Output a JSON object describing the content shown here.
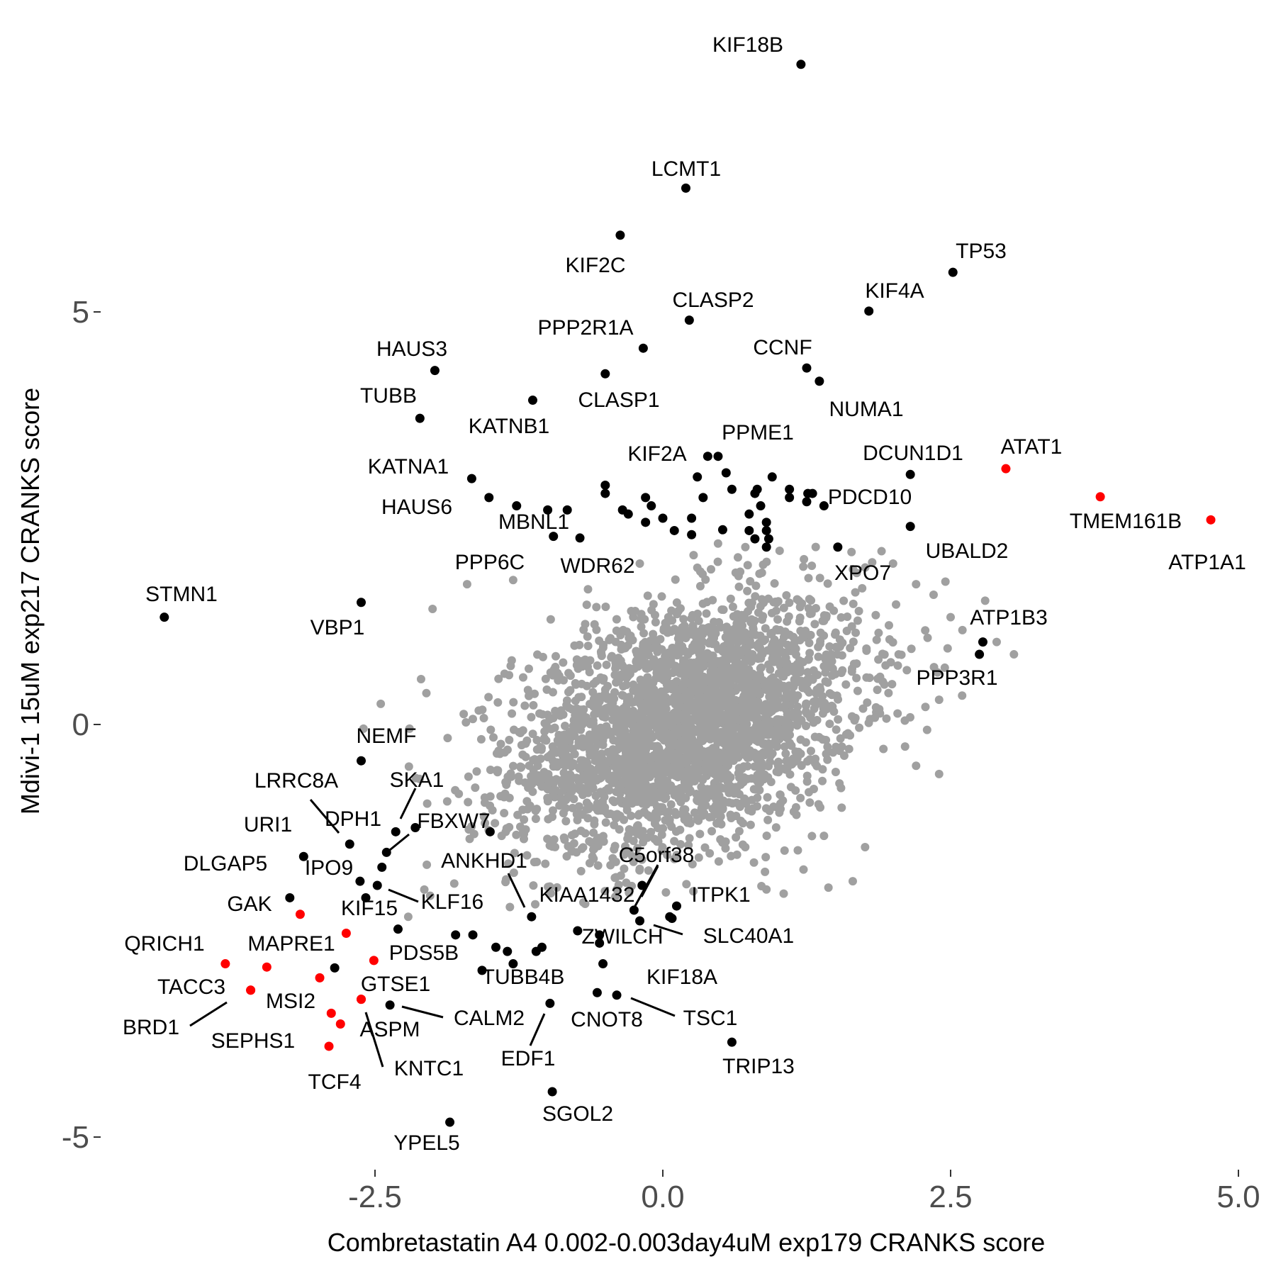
{
  "chart_data": {
    "type": "scatter",
    "title": "",
    "xlabel": "Combretastatin A4 0.002-0.003day4uM exp179 CRANKS score",
    "ylabel": "Mdivi-1 15uM exp217 CRANKS score",
    "xlim": [
      -4.55,
      5.0
    ],
    "ylim": [
      -5.4,
      8.0
    ],
    "x_ticks": [
      -2.5,
      0.0,
      2.5,
      5.0
    ],
    "x_tick_labels": [
      "-2.5",
      "0.0",
      "2.5",
      "5.0"
    ],
    "y_ticks": [
      -5,
      0,
      5
    ],
    "y_tick_labels": [
      "-5",
      "0",
      "5"
    ],
    "grid": false,
    "legend": "none",
    "colors": {
      "background": "#888888",
      "highlight": "#000000",
      "red": "#ff0000"
    },
    "background_cloud": {
      "color": "#a0a0a0",
      "center": [
        0.2,
        0.0
      ],
      "sd": [
        0.75,
        0.75
      ],
      "n": 3000,
      "extra_points": [
        [
          -2.0,
          1.4
        ],
        [
          -1.7,
          1.7
        ],
        [
          -1.3,
          1.75
        ],
        [
          -2.1,
          0.55
        ],
        [
          -2.45,
          0.25
        ],
        [
          -2.2,
          -0.05
        ],
        [
          -2.6,
          -0.05
        ],
        [
          -2.05,
          -1.7
        ],
        [
          -1.4,
          -1.35
        ],
        [
          2.5,
          1.3
        ],
        [
          2.2,
          1.7
        ],
        [
          2.8,
          1.5
        ],
        [
          2.9,
          1.0
        ],
        [
          3.05,
          0.85
        ],
        [
          2.4,
          0.3
        ],
        [
          2.6,
          0.35
        ],
        [
          2.2,
          -0.5
        ],
        [
          2.4,
          -0.6
        ],
        [
          1.65,
          -1.9
        ],
        [
          2.3,
          1.05
        ],
        [
          1.9,
          2.1
        ],
        [
          2.0,
          1.95
        ],
        [
          0.3,
          1.9
        ],
        [
          -0.2,
          1.95
        ],
        [
          -0.4,
          -2.0
        ],
        [
          0.9,
          -2.0
        ],
        [
          1.05,
          -2.05
        ],
        [
          -0.75,
          -1.55
        ],
        [
          -0.2,
          -1.75
        ],
        [
          1.4,
          -1.35
        ]
      ]
    },
    "labeled_points": [
      {
        "label": "KIF18B",
        "x": 1.2,
        "y": 8.0,
        "color": "black"
      },
      {
        "label": "LCMT1",
        "x": 0.2,
        "y": 6.5,
        "color": "black"
      },
      {
        "label": "KIF2C",
        "x": -0.37,
        "y": 5.93,
        "color": "black"
      },
      {
        "label": "TP53",
        "x": 2.52,
        "y": 5.48,
        "color": "black"
      },
      {
        "label": "KIF4A",
        "x": 1.79,
        "y": 5.01,
        "color": "black"
      },
      {
        "label": "CLASP2",
        "x": 0.23,
        "y": 4.9,
        "color": "black"
      },
      {
        "label": "PPP2R1A",
        "x": -0.17,
        "y": 4.56,
        "color": "black"
      },
      {
        "label": "HAUS3",
        "x": -1.98,
        "y": 4.29,
        "color": "black"
      },
      {
        "label": "CCNF",
        "x": 1.25,
        "y": 4.32,
        "color": "black"
      },
      {
        "label": "NUMA1",
        "x": 1.36,
        "y": 4.16,
        "color": "black"
      },
      {
        "label": "CLASP1",
        "x": -0.5,
        "y": 4.25,
        "color": "black"
      },
      {
        "label": "KATNB1",
        "x": -1.13,
        "y": 3.93,
        "color": "black"
      },
      {
        "label": "TUBB",
        "x": -2.11,
        "y": 3.71,
        "color": "black"
      },
      {
        "label": "PPME1",
        "x": 0.48,
        "y": 3.25,
        "color": "black"
      },
      {
        "label": "KIF2A",
        "x": 0.39,
        "y": 3.25,
        "color": "black"
      },
      {
        "label": "DCUN1D1",
        "x": 2.15,
        "y": 3.03,
        "color": "black"
      },
      {
        "label": "ATAT1",
        "x": 2.98,
        "y": 3.1,
        "color": "red"
      },
      {
        "label": "KATNA1",
        "x": -1.66,
        "y": 2.98,
        "color": "black"
      },
      {
        "label": "TMEM161B",
        "x": 3.8,
        "y": 2.76,
        "color": "red"
      },
      {
        "label": "HAUS6",
        "x": -1.51,
        "y": 2.75,
        "color": "black"
      },
      {
        "label": "PDCD10",
        "x": 1.26,
        "y": 2.8,
        "color": "black"
      },
      {
        "label": "ATP1A1",
        "x": 4.76,
        "y": 2.48,
        "color": "red"
      },
      {
        "label": "MBNL1",
        "x": -1.27,
        "y": 2.65,
        "color": "black"
      },
      {
        "label": "UBALD2",
        "x": 2.15,
        "y": 2.4,
        "color": "black"
      },
      {
        "label": "WDR62",
        "x": -0.72,
        "y": 2.26,
        "color": "black"
      },
      {
        "label": "PPP6C",
        "x": -0.95,
        "y": 2.28,
        "color": "black"
      },
      {
        "label": "XPO7",
        "x": 1.52,
        "y": 2.15,
        "color": "black"
      },
      {
        "label": "STMN1",
        "x": -4.33,
        "y": 1.3,
        "color": "black"
      },
      {
        "label": "VBP1",
        "x": -2.62,
        "y": 1.48,
        "color": "black"
      },
      {
        "label": "ATP1B3",
        "x": 2.78,
        "y": 1.0,
        "color": "black"
      },
      {
        "label": "PPP3R1",
        "x": 2.75,
        "y": 0.85,
        "color": "black"
      },
      {
        "label": "NEMF",
        "x": -2.62,
        "y": -0.44,
        "color": "black"
      },
      {
        "label": "LRRC8A",
        "x": -2.72,
        "y": -1.45,
        "color": "black"
      },
      {
        "label": "SKA1",
        "x": -2.32,
        "y": -1.3,
        "color": "black"
      },
      {
        "label": "FBXW7",
        "x": -2.4,
        "y": -1.55,
        "color": "black"
      },
      {
        "label": "DPH1",
        "x": -2.44,
        "y": -1.73,
        "color": "black"
      },
      {
        "label": "URI1",
        "x": -3.12,
        "y": -1.6,
        "color": "black"
      },
      {
        "label": "IPO9",
        "x": -2.63,
        "y": -1.9,
        "color": "black"
      },
      {
        "label": "KLF16",
        "x": -2.48,
        "y": -1.95,
        "color": "black"
      },
      {
        "label": "DLGAP5",
        "x": -3.24,
        "y": -2.1,
        "color": "black"
      },
      {
        "label": "GAK",
        "x": -3.15,
        "y": -2.3,
        "color": "red"
      },
      {
        "label": "KIF15",
        "x": -2.75,
        "y": -2.53,
        "color": "red"
      },
      {
        "label": "ANKHD1",
        "x": -1.14,
        "y": -2.33,
        "color": "black"
      },
      {
        "label": "KIAA1432",
        "x": -0.25,
        "y": -2.25,
        "color": "black"
      },
      {
        "label": "C5orf38",
        "x": -0.2,
        "y": -2.38,
        "color": "black"
      },
      {
        "label": "ITPK1",
        "x": 0.06,
        "y": -2.33,
        "color": "black"
      },
      {
        "label": "SLC40A1",
        "x": 0.08,
        "y": -2.35,
        "color": "black"
      },
      {
        "label": "ZWILCH",
        "x": -0.74,
        "y": -2.5,
        "color": "black"
      },
      {
        "label": "QRICH1",
        "x": -3.8,
        "y": -2.9,
        "color": "red"
      },
      {
        "label": "MAPRE1",
        "x": -3.44,
        "y": -2.94,
        "color": "red"
      },
      {
        "label": "PDS5B",
        "x": -2.51,
        "y": -2.86,
        "color": "red"
      },
      {
        "label": "TUBB4B",
        "x": -1.57,
        "y": -2.98,
        "color": "black"
      },
      {
        "label": "KIF18A",
        "x": -0.52,
        "y": -2.9,
        "color": "black"
      },
      {
        "label": "TACC3",
        "x": -3.58,
        "y": -3.22,
        "color": "red"
      },
      {
        "label": "MSI2",
        "x": -2.98,
        "y": -3.07,
        "color": "red"
      },
      {
        "label": "GTSE1",
        "x": -2.62,
        "y": -3.33,
        "color": "red"
      },
      {
        "label": "CALM2",
        "x": -2.37,
        "y": -3.4,
        "color": "black"
      },
      {
        "label": "EDF1",
        "x": -0.98,
        "y": -3.38,
        "color": "black"
      },
      {
        "label": "CNOT8",
        "x": -0.57,
        "y": -3.25,
        "color": "black"
      },
      {
        "label": "TSC1",
        "x": -0.4,
        "y": -3.28,
        "color": "black"
      },
      {
        "label": "BRD1",
        "x": -3.58,
        "y": -3.22,
        "color": "red"
      },
      {
        "label": "ASPM",
        "x": -2.8,
        "y": -3.63,
        "color": "red"
      },
      {
        "label": "SEPHS1",
        "x": -2.88,
        "y": -3.5,
        "color": "red"
      },
      {
        "label": "KNTC1",
        "x": -2.62,
        "y": -3.33,
        "color": "red"
      },
      {
        "label": "TCF4",
        "x": -2.9,
        "y": -3.9,
        "color": "red"
      },
      {
        "label": "TRIP13",
        "x": 0.6,
        "y": -3.85,
        "color": "black"
      },
      {
        "label": "SGOL2",
        "x": -0.96,
        "y": -4.45,
        "color": "black"
      },
      {
        "label": "YPEL5",
        "x": -1.85,
        "y": -4.82,
        "color": "black"
      }
    ],
    "unlabeled_highlighted": [
      [
        -2.15,
        -1.25
      ],
      [
        -1.5,
        -1.3
      ],
      [
        -1.8,
        -2.55
      ],
      [
        -1.65,
        -2.55
      ],
      [
        -1.45,
        -2.7
      ],
      [
        -1.35,
        -2.75
      ],
      [
        -1.1,
        -2.75
      ],
      [
        -1.05,
        -2.7
      ],
      [
        -0.55,
        -2.55
      ],
      [
        -0.55,
        -2.65
      ],
      [
        -2.3,
        -2.48
      ],
      [
        -1.3,
        -2.9
      ],
      [
        0.12,
        -2.2
      ],
      [
        -0.18,
        -1.95
      ],
      [
        -2.85,
        -2.95
      ],
      [
        -2.58,
        -2.1
      ],
      [
        -0.5,
        2.8
      ],
      [
        -0.5,
        2.9
      ],
      [
        -0.83,
        2.6
      ],
      [
        -1.0,
        2.6
      ],
      [
        -0.35,
        2.6
      ],
      [
        -0.1,
        2.65
      ],
      [
        -0.15,
        2.45
      ],
      [
        0.0,
        2.5
      ],
      [
        0.1,
        2.35
      ],
      [
        0.25,
        2.3
      ],
      [
        0.25,
        2.5
      ],
      [
        0.3,
        3.0
      ],
      [
        0.35,
        2.75
      ],
      [
        -0.15,
        2.75
      ],
      [
        0.55,
        3.05
      ],
      [
        0.6,
        2.85
      ],
      [
        0.75,
        2.55
      ],
      [
        0.8,
        2.8
      ],
      [
        0.85,
        2.65
      ],
      [
        0.75,
        2.35
      ],
      [
        0.8,
        2.25
      ],
      [
        0.95,
        3.0
      ],
      [
        0.9,
        2.35
      ],
      [
        0.9,
        2.45
      ],
      [
        1.1,
        2.85
      ],
      [
        1.25,
        2.7
      ],
      [
        1.3,
        2.8
      ],
      [
        1.4,
        2.65
      ],
      [
        1.1,
        2.75
      ],
      [
        0.52,
        2.36
      ],
      [
        0.9,
        2.15
      ],
      [
        0.92,
        2.25
      ],
      [
        -0.3,
        2.55
      ],
      [
        0.82,
        2.85
      ]
    ]
  }
}
